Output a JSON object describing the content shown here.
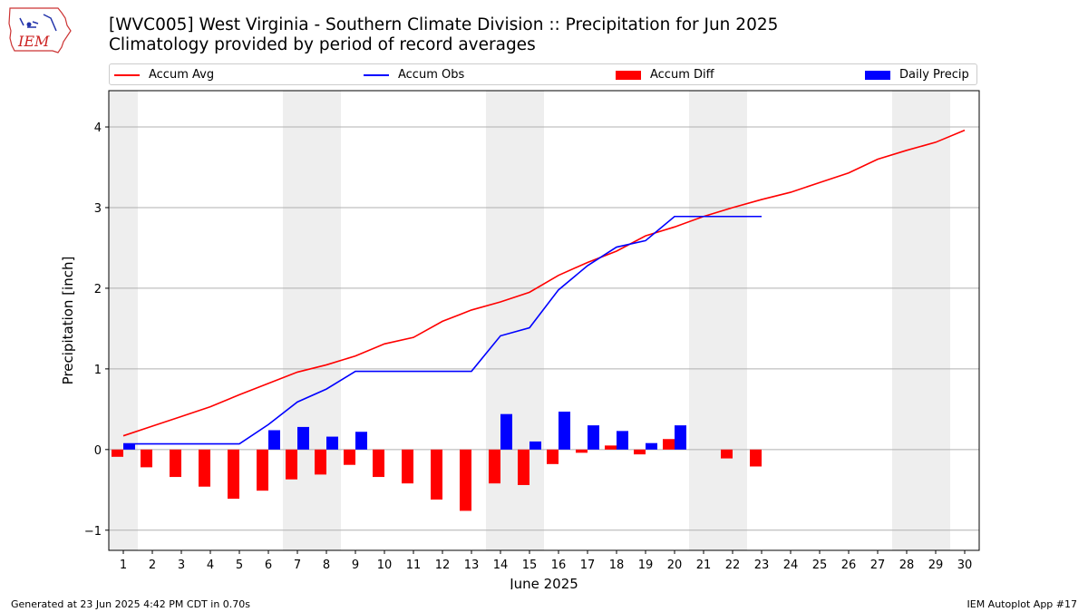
{
  "header": {
    "logo_text": "IEM",
    "title_line1": "[WVC005] West Virginia - Southern Climate Division :: Precipitation for Jun 2025",
    "title_line2": "Climatology provided by period of record averages"
  },
  "legend": {
    "items": [
      {
        "label": "Accum Avg",
        "kind": "line",
        "color": "#ff0000"
      },
      {
        "label": "Accum Obs",
        "kind": "line",
        "color": "#0000ff"
      },
      {
        "label": "Accum Diff",
        "kind": "bar",
        "color": "#ff0000"
      },
      {
        "label": "Daily Precip",
        "kind": "bar",
        "color": "#0000ff"
      }
    ]
  },
  "footer": {
    "left": "Generated at 23 Jun 2025 4:42 PM CDT in 0.70s",
    "right": "IEM Autoplot App #17"
  },
  "chart_data": {
    "type": "bar",
    "xlabel": "June 2025",
    "ylabel": "Precipitation [inch]",
    "xlim": [
      0.5,
      30.5
    ],
    "ylim": [
      -1.25,
      4.45
    ],
    "yticks": [
      -1,
      0,
      1,
      2,
      3,
      4
    ],
    "grid": "horizontal",
    "legend_position": "top",
    "weekend_bands": [
      [
        0.5,
        1.5
      ],
      [
        6.5,
        8.5
      ],
      [
        13.5,
        15.5
      ],
      [
        20.5,
        22.5
      ],
      [
        27.5,
        29.5
      ]
    ],
    "days": [
      1,
      2,
      3,
      4,
      5,
      6,
      7,
      8,
      9,
      10,
      11,
      12,
      13,
      14,
      15,
      16,
      17,
      18,
      19,
      20,
      21,
      22,
      23,
      24,
      25,
      26,
      27,
      28,
      29,
      30
    ],
    "series": [
      {
        "name": "Accum Avg",
        "kind": "line",
        "color": "#ff0000",
        "values": [
          0.17,
          0.29,
          0.41,
          0.53,
          0.68,
          0.82,
          0.96,
          1.05,
          1.16,
          1.31,
          1.39,
          1.59,
          1.73,
          1.83,
          1.95,
          2.16,
          2.32,
          2.46,
          2.65,
          2.76,
          2.89,
          3.0,
          3.1,
          3.19,
          3.31,
          3.43,
          3.6,
          3.71,
          3.81,
          3.96
        ]
      },
      {
        "name": "Accum Obs",
        "kind": "line",
        "color": "#0000ff",
        "values": [
          0.07,
          0.07,
          0.07,
          0.07,
          0.07,
          0.31,
          0.59,
          0.75,
          0.97,
          0.97,
          0.97,
          0.97,
          0.97,
          1.41,
          1.51,
          1.98,
          2.28,
          2.51,
          2.59,
          2.89,
          2.89,
          2.89,
          2.89
        ]
      },
      {
        "name": "Accum Diff",
        "kind": "bar",
        "color": "#ff0000",
        "values": [
          -0.09,
          -0.22,
          -0.34,
          -0.46,
          -0.61,
          -0.51,
          -0.37,
          -0.31,
          -0.19,
          -0.34,
          -0.42,
          -0.62,
          -0.76,
          -0.42,
          -0.44,
          -0.18,
          -0.04,
          0.05,
          -0.06,
          0.13,
          0.0,
          -0.11,
          -0.21
        ]
      },
      {
        "name": "Daily Precip",
        "kind": "bar",
        "color": "#0000ff",
        "values": [
          0.07,
          0.0,
          0.0,
          0.0,
          0.0,
          0.24,
          0.28,
          0.16,
          0.22,
          0.0,
          0.0,
          0.0,
          0.0,
          0.44,
          0.1,
          0.47,
          0.3,
          0.23,
          0.08,
          0.3,
          0.0,
          0.0,
          0.0
        ]
      }
    ]
  }
}
